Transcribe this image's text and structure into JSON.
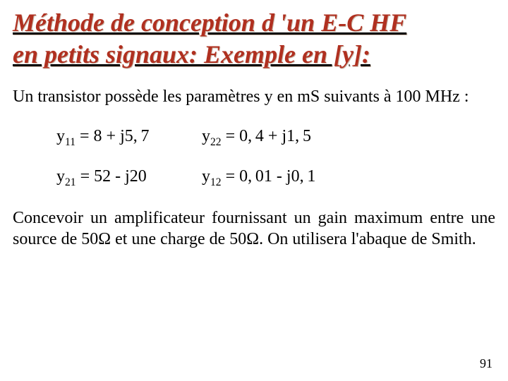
{
  "title": {
    "line1": "Méthode de conception d 'un E-C HF",
    "line2": "en petits signaux: Exemple en [y]:",
    "color": "#b03020",
    "shadow_color": "#c9b8aa",
    "fontsize": 36
  },
  "intro": {
    "text": "Un transistor possède les paramètres y en mS suivants à 100 MHz :",
    "fontsize": 24
  },
  "params": {
    "y11": {
      "label_sub": "11",
      "expr": "= 8 + j5, 7"
    },
    "y22": {
      "label_sub": "22",
      "expr": "= 0, 4 + j1, 5"
    },
    "y21": {
      "label_sub": "21",
      "expr": "= 52 - j20"
    },
    "y12": {
      "label_sub": "12",
      "expr": "= 0, 01 - j0, 1"
    },
    "fontsize": 24
  },
  "task": {
    "text": "Concevoir un amplificateur fournissant un gain maximum entre une source de 50Ω et une charge de 50Ω. On utilisera l'abaque de Smith.",
    "fontsize": 24
  },
  "page_number": "91",
  "background_color": "#ffffff",
  "text_color": "#000000"
}
